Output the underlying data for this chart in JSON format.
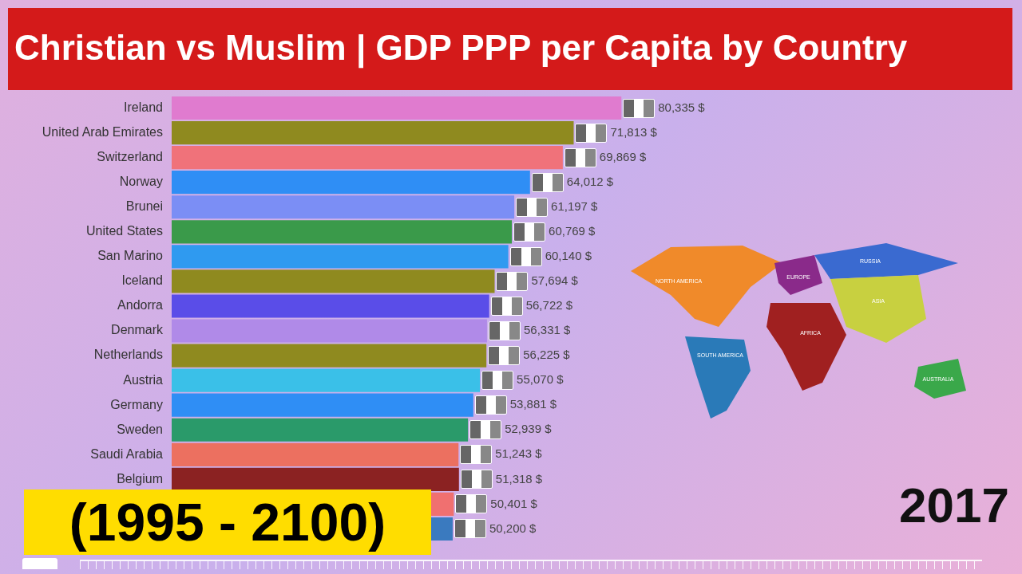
{
  "chart_data": {
    "type": "bar",
    "orientation": "horizontal",
    "title": "Christian vs Muslim | GDP PPP per Capita by Country",
    "subtitle": "(1995 - 2100)",
    "categories": [
      "Ireland",
      "United Arab Emirates",
      "Switzerland",
      "Norway",
      "Brunei",
      "United States",
      "San Marino",
      "Iceland",
      "Andorra",
      "Denmark",
      "Netherlands",
      "Austria",
      "Germany",
      "Sweden",
      "Saudi Arabia",
      "Belgium",
      null,
      null
    ],
    "values": [
      80335,
      71813,
      69869,
      64012,
      61197,
      60769,
      60140,
      57694,
      56722,
      56331,
      56225,
      55070,
      53881,
      52939,
      51243,
      51318,
      50401,
      50200
    ],
    "value_labels": [
      "80,335 $",
      "71,813 $",
      "69,869 $",
      "64,012 $",
      "61,197 $",
      "60,769 $",
      "60,140 $",
      "57,694 $",
      "56,722 $",
      "56,331 $",
      "56,225 $",
      "55,070 $",
      "53,881 $",
      "52,939 $",
      "51,243 $",
      "51,318 $",
      "50,401 $",
      "50,200 $"
    ],
    "colors": [
      "#e07bcf",
      "#8f8a1f",
      "#f0727a",
      "#2f8ef5",
      "#7b8ef5",
      "#3a9a4a",
      "#2f9af0",
      "#8f8a1f",
      "#5a4de8",
      "#b08ae8",
      "#8f8a1f",
      "#3ac0e8",
      "#2f8ef5",
      "#2a9a6a",
      "#ec7060",
      "#8b2222",
      "#f07070",
      "#3a7abf"
    ],
    "tick_labels": "y",
    "annotations": [
      "2017",
      "NORTH AMERICA",
      "SOUTH AMERICA",
      "EUROPE",
      "RUSSIA",
      "ASIA",
      "AFRICA",
      "AUSTRALIA"
    ]
  }
}
